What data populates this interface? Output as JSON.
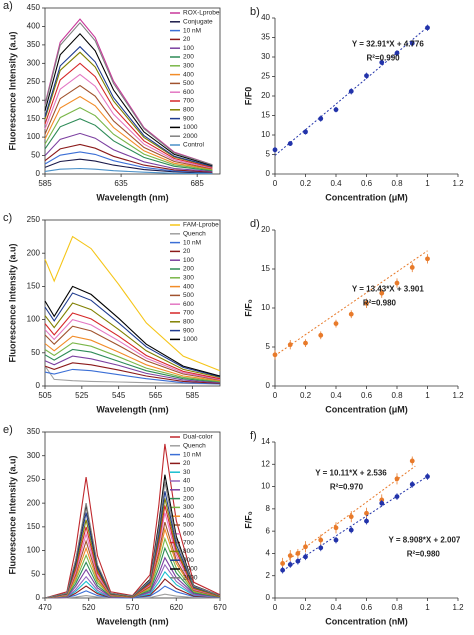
{
  "chart_data": [
    {
      "type": "line",
      "panel": "a)",
      "xlabel": "Wavelength (nm)",
      "ylabel": "Fluorescence Intensity (a.u)",
      "xlim": [
        585,
        700
      ],
      "xticks": [
        585,
        635,
        685
      ],
      "ylim": [
        0,
        450
      ],
      "yticks": [
        0,
        50,
        100,
        150,
        200,
        250,
        300,
        350,
        400,
        450
      ],
      "x": [
        585,
        595,
        608,
        618,
        630,
        650,
        670,
        695
      ],
      "series": [
        {
          "name": "ROX-Lprobe",
          "color": "#c8389a",
          "values": [
            189,
            357,
            420,
            370,
            252,
            126,
            59,
            25
          ]
        },
        {
          "name": "Conjugate",
          "color": "#1a1a4a",
          "values": [
            18,
            34,
            40,
            35,
            24,
            12,
            6,
            2
          ]
        },
        {
          "name": "10 nM",
          "color": "#3b6fd6",
          "values": [
            27,
            51,
            60,
            53,
            36,
            18,
            8,
            4
          ]
        },
        {
          "name": "20",
          "color": "#8b1a1a",
          "values": [
            36,
            68,
            80,
            70,
            48,
            24,
            11,
            5
          ]
        },
        {
          "name": "100",
          "color": "#7b3fa0",
          "values": [
            50,
            94,
            110,
            97,
            66,
            33,
            15,
            7
          ]
        },
        {
          "name": "200",
          "color": "#2e8b57",
          "values": [
            68,
            128,
            150,
            132,
            90,
            45,
            21,
            9
          ]
        },
        {
          "name": "300",
          "color": "#7ab648",
          "values": [
            81,
            153,
            180,
            158,
            108,
            54,
            25,
            11
          ]
        },
        {
          "name": "400",
          "color": "#f28c28",
          "values": [
            95,
            179,
            210,
            185,
            126,
            63,
            29,
            13
          ]
        },
        {
          "name": "500",
          "color": "#a0522d",
          "values": [
            108,
            204,
            240,
            211,
            144,
            72,
            34,
            14
          ]
        },
        {
          "name": "600",
          "color": "#e377c2",
          "values": [
            122,
            230,
            270,
            238,
            162,
            81,
            38,
            16
          ]
        },
        {
          "name": "700",
          "color": "#d62728",
          "values": [
            135,
            255,
            300,
            264,
            180,
            90,
            42,
            18
          ]
        },
        {
          "name": "800",
          "color": "#808000",
          "values": [
            149,
            281,
            330,
            290,
            198,
            99,
            46,
            20
          ]
        },
        {
          "name": "900",
          "color": "#1f3b8f",
          "values": [
            155,
            293,
            345,
            304,
            207,
            104,
            48,
            21
          ]
        },
        {
          "name": "1000",
          "color": "#000000",
          "values": [
            171,
            323,
            380,
            334,
            228,
            114,
            53,
            23
          ]
        },
        {
          "name": "2000",
          "color": "#7f7f7f",
          "values": [
            185,
            349,
            410,
            361,
            246,
            123,
            57,
            25
          ]
        },
        {
          "name": "Control",
          "color": "#4a90c8",
          "values": [
            7,
            13,
            15,
            13,
            9,
            5,
            2,
            1
          ]
        }
      ]
    },
    {
      "type": "scatter",
      "panel": "b)",
      "xlabel": "Concentration (μM)",
      "ylabel": "F/F0",
      "xlim": [
        0,
        1.2
      ],
      "xticks": [
        0,
        0.2,
        0.4,
        0.6,
        0.8,
        1,
        1.2
      ],
      "ylim": [
        0,
        40
      ],
      "yticks": [
        0,
        5,
        10,
        15,
        20,
        25,
        30,
        35,
        40
      ],
      "series": [
        {
          "color": "#2233aa",
          "equation_color": "#000000",
          "equation": "Y = 32.91*X + 4.776",
          "r2": "R²=0.990",
          "x": [
            0,
            0.1,
            0.2,
            0.3,
            0.4,
            0.5,
            0.6,
            0.7,
            0.8,
            0.9,
            1
          ],
          "values": [
            6.2,
            7.8,
            10.8,
            14.2,
            16.5,
            21.2,
            25.2,
            28.6,
            31,
            33.5,
            37.5
          ],
          "errors": [
            0.7,
            0.6,
            0.7,
            0.8,
            0.7,
            0.8,
            0.8,
            0.7,
            0.8,
            0.8,
            0.8
          ],
          "fit": {
            "x": [
              0,
              1
            ],
            "values": [
              4.78,
              37.69
            ]
          }
        }
      ]
    },
    {
      "type": "line",
      "panel": "c)",
      "xlabel": "Wavelength (nm)",
      "ylabel": "Fluorescence Intensity (a.u)",
      "xlim": [
        505,
        600
      ],
      "xticks": [
        505,
        525,
        545,
        565,
        585
      ],
      "ylim": [
        0,
        250
      ],
      "yticks": [
        0,
        50,
        100,
        150,
        200,
        250
      ],
      "x": [
        505,
        510,
        520,
        530,
        545,
        560,
        580,
        600
      ],
      "series": [
        {
          "name": "FAM-Lprobe",
          "color": "#f5c518",
          "values": [
            191,
            158,
            225,
            207,
            153,
            95,
            45,
            23
          ]
        },
        {
          "name": "Quench",
          "color": "#a0a0a0",
          "values": [
            30,
            10,
            8,
            7,
            6,
            5,
            4,
            3
          ]
        },
        {
          "name": "10 nM",
          "color": "#3b6fd6",
          "values": [
            21,
            18,
            25,
            23,
            17,
            11,
            5,
            3
          ]
        },
        {
          "name": "20",
          "color": "#8b1a1a",
          "values": [
            30,
            25,
            35,
            32,
            24,
            15,
            7,
            4
          ]
        },
        {
          "name": "100",
          "color": "#7b3fa0",
          "values": [
            38,
            32,
            45,
            41,
            31,
            19,
            9,
            5
          ]
        },
        {
          "name": "200",
          "color": "#2e8b57",
          "values": [
            47,
            39,
            55,
            51,
            37,
            23,
            11,
            6
          ]
        },
        {
          "name": "300",
          "color": "#7ab648",
          "values": [
            55,
            46,
            65,
            60,
            44,
            27,
            13,
            7
          ]
        },
        {
          "name": "400",
          "color": "#f28c28",
          "values": [
            64,
            53,
            75,
            69,
            51,
            32,
            15,
            8
          ]
        },
        {
          "name": "500",
          "color": "#a0522d",
          "values": [
            77,
            63,
            90,
            83,
            61,
            38,
            18,
            9
          ]
        },
        {
          "name": "600",
          "color": "#e377c2",
          "values": [
            85,
            70,
            100,
            92,
            68,
            42,
            20,
            10
          ]
        },
        {
          "name": "700",
          "color": "#d62728",
          "values": [
            94,
            77,
            110,
            101,
            75,
            46,
            22,
            11
          ]
        },
        {
          "name": "800",
          "color": "#808000",
          "values": [
            106,
            88,
            125,
            115,
            85,
            53,
            25,
            13
          ]
        },
        {
          "name": "900",
          "color": "#1f3b8f",
          "values": [
            119,
            98,
            140,
            129,
            95,
            59,
            28,
            14
          ]
        },
        {
          "name": "1000",
          "color": "#000000",
          "values": [
            128,
            105,
            150,
            138,
            102,
            63,
            30,
            15
          ]
        }
      ]
    },
    {
      "type": "scatter",
      "panel": "d)",
      "xlabel": "Concentration (μM)",
      "ylabel": "F/F₀",
      "xlim": [
        0,
        1.2
      ],
      "xticks": [
        0,
        0.2,
        0.4,
        0.6,
        0.8,
        1,
        1.2
      ],
      "ylim": [
        0,
        20
      ],
      "yticks": [
        0,
        5,
        10,
        15,
        20
      ],
      "series": [
        {
          "color": "#e87a2a",
          "equation_color": "#000000",
          "equation": "Y = 13.43*X + 3.901",
          "r2": "R²=0.980",
          "x": [
            0,
            0.1,
            0.2,
            0.3,
            0.4,
            0.5,
            0.6,
            0.7,
            0.8,
            0.9,
            1
          ],
          "values": [
            4,
            5.3,
            5.5,
            6.5,
            8,
            9.2,
            10.6,
            11.9,
            13.2,
            15.2,
            16.3
          ],
          "errors": [
            0.6,
            0.6,
            0.5,
            0.5,
            0.5,
            0.5,
            0.6,
            0.6,
            0.6,
            0.6,
            0.6
          ],
          "fit": {
            "x": [
              0,
              1
            ],
            "values": [
              3.9,
              17.33
            ]
          }
        }
      ]
    },
    {
      "type": "line",
      "panel": "e)",
      "xlabel": "Wavelength (nm)",
      "ylabel": "Fluorescence Intensity (a.u)",
      "xlim": [
        470,
        670
      ],
      "xticks": [
        470,
        520,
        570,
        620,
        670
      ],
      "ylim": [
        0,
        350
      ],
      "yticks": [
        0,
        50,
        100,
        150,
        200,
        250,
        300,
        350
      ],
      "x": [
        470,
        495,
        505,
        517,
        530,
        545,
        570,
        590,
        600,
        607,
        620,
        640,
        670
      ],
      "series": [
        {
          "name": "Dual-color",
          "color": "#c0282d",
          "values": [
            0,
            13,
            102,
            255,
            89,
            13,
            5,
            49,
            195,
            325,
            163,
            33,
            7
          ]
        },
        {
          "name": "Quench",
          "color": "#a0a0a0",
          "values": [
            0,
            0,
            2,
            5,
            2,
            0,
            0,
            1,
            5,
            8,
            4,
            1,
            0
          ]
        },
        {
          "name": "10 nM",
          "color": "#3b6fd6",
          "values": [
            0,
            1,
            6,
            15,
            5,
            1,
            0,
            4,
            15,
            25,
            13,
            3,
            1
          ]
        },
        {
          "name": "20",
          "color": "#8b1a1a",
          "values": [
            0,
            1,
            10,
            25,
            9,
            1,
            1,
            6,
            24,
            40,
            20,
            4,
            1
          ]
        },
        {
          "name": "30",
          "color": "#17becf",
          "values": [
            0,
            2,
            14,
            35,
            12,
            2,
            1,
            8,
            33,
            55,
            28,
            6,
            1
          ]
        },
        {
          "name": "40",
          "color": "#9467bd",
          "values": [
            0,
            2,
            18,
            45,
            16,
            2,
            1,
            11,
            42,
            70,
            35,
            7,
            1
          ]
        },
        {
          "name": "100",
          "color": "#7b3fa0",
          "values": [
            0,
            3,
            24,
            60,
            21,
            3,
            1,
            13,
            51,
            85,
            43,
            9,
            2
          ]
        },
        {
          "name": "200",
          "color": "#2e8b57",
          "values": [
            0,
            4,
            30,
            75,
            26,
            4,
            2,
            16,
            63,
            105,
            53,
            11,
            2
          ]
        },
        {
          "name": "300",
          "color": "#7ab648",
          "values": [
            0,
            5,
            36,
            90,
            32,
            5,
            2,
            19,
            75,
            125,
            63,
            13,
            3
          ]
        },
        {
          "name": "400",
          "color": "#f28c28",
          "values": [
            0,
            5,
            42,
            105,
            37,
            5,
            2,
            22,
            87,
            145,
            73,
            15,
            3
          ]
        },
        {
          "name": "500",
          "color": "#a0522d",
          "values": [
            0,
            6,
            48,
            120,
            42,
            6,
            2,
            24,
            96,
            160,
            80,
            16,
            3
          ]
        },
        {
          "name": "600",
          "color": "#e377c2",
          "values": [
            0,
            7,
            54,
            135,
            47,
            7,
            3,
            27,
            108,
            180,
            90,
            18,
            4
          ]
        },
        {
          "name": "700",
          "color": "#d62728",
          "values": [
            0,
            8,
            60,
            150,
            53,
            8,
            3,
            29,
            117,
            195,
            98,
            20,
            4
          ]
        },
        {
          "name": "800",
          "color": "#808000",
          "values": [
            0,
            8,
            66,
            165,
            58,
            8,
            3,
            32,
            126,
            210,
            105,
            21,
            4
          ]
        },
        {
          "name": "900",
          "color": "#1f3b8f",
          "values": [
            0,
            9,
            72,
            180,
            63,
            9,
            4,
            34,
            135,
            225,
            113,
            23,
            5
          ]
        },
        {
          "name": "1000",
          "color": "#000000",
          "values": [
            0,
            10,
            78,
            195,
            68,
            10,
            4,
            39,
            156,
            260,
            130,
            26,
            5
          ]
        },
        {
          "name": "2000",
          "color": "#7f7f7f",
          "values": [
            0,
            10,
            80,
            200,
            70,
            10,
            4,
            37,
            147,
            245,
            123,
            25,
            5
          ]
        }
      ]
    },
    {
      "type": "scatter",
      "panel": "f)",
      "xlabel": "Concentration (nM)",
      "ylabel": "F/F₀",
      "xlim": [
        0,
        1.2
      ],
      "xticks": [
        0,
        0.2,
        0.4,
        0.6,
        0.8,
        1,
        1.2
      ],
      "ylim": [
        0,
        14
      ],
      "yticks": [
        0,
        2,
        4,
        6,
        8,
        10,
        12,
        14
      ],
      "series": [
        {
          "color": "#e87a2a",
          "equation_color": "#e87a2a",
          "equation": "Y = 10.11*X + 2.536",
          "r2": "R²=0.970",
          "x": [
            0.05,
            0.1,
            0.15,
            0.2,
            0.3,
            0.4,
            0.5,
            0.6,
            0.7,
            0.8,
            0.9
          ],
          "values": [
            3.1,
            3.8,
            4,
            4.6,
            5.2,
            6.3,
            7.3,
            7.6,
            8.8,
            10.7,
            12.3
          ],
          "errors": [
            0.5,
            0.5,
            0.4,
            0.5,
            0.5,
            0.5,
            0.5,
            0.5,
            0.5,
            0.5,
            0.4
          ],
          "fit": {
            "x": [
              0.05,
              0.92
            ],
            "values": [
              3.04,
              11.84
            ]
          }
        },
        {
          "color": "#2233aa",
          "equation_color": "#2233aa",
          "equation": "Y = 8.908*X + 2.007",
          "r2": "R²=0.980",
          "x": [
            0.05,
            0.1,
            0.15,
            0.2,
            0.3,
            0.4,
            0.5,
            0.6,
            0.7,
            0.8,
            0.9,
            1
          ],
          "values": [
            2.5,
            3,
            3.3,
            3.7,
            4.5,
            5.2,
            6.1,
            6.9,
            8.5,
            9.1,
            10.2,
            10.9
          ],
          "errors": [
            0.3,
            0.3,
            0.3,
            0.3,
            0.3,
            0.3,
            0.3,
            0.3,
            0.3,
            0.3,
            0.3,
            0.3
          ],
          "fit": {
            "x": [
              0.05,
              1
            ],
            "values": [
              2.45,
              10.92
            ]
          }
        }
      ]
    }
  ]
}
